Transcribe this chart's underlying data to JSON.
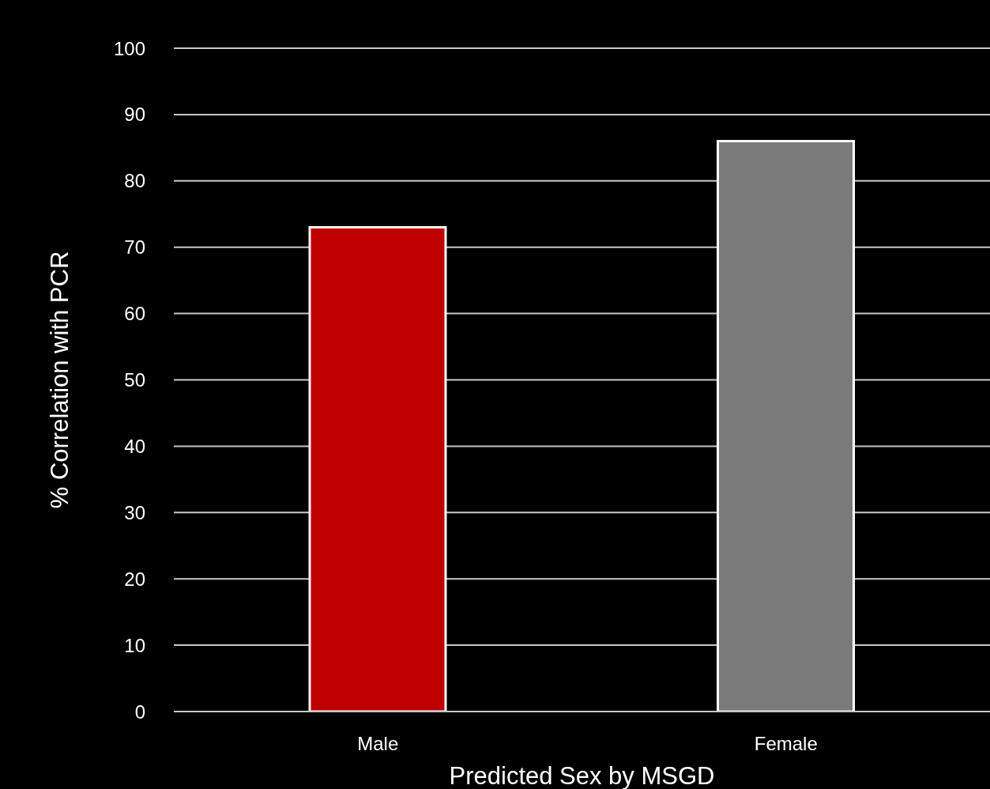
{
  "chart_data": {
    "type": "bar",
    "xlabel": "Predicted Sex by MSGD",
    "ylabel": "% Correlation with PCR",
    "categories": [
      "Male",
      "Female"
    ],
    "values": [
      73,
      86
    ],
    "colors": [
      "#c00000",
      "#7a7a7a"
    ],
    "ylim": [
      0,
      100
    ],
    "yticks": [
      0,
      10,
      20,
      30,
      40,
      50,
      60,
      70,
      80,
      90,
      100
    ],
    "grid": "y"
  }
}
